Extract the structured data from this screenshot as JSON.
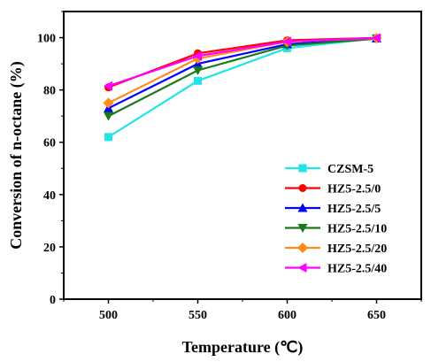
{
  "chart_data": {
    "type": "line",
    "xlabel": "Temperature (℃)",
    "ylabel": "Conversion of n-octane (%)",
    "x": [
      500,
      550,
      600,
      650
    ],
    "x_ticks": [
      "500",
      "550",
      "600",
      "650"
    ],
    "xlim": [
      475,
      675
    ],
    "ylim": [
      0,
      110
    ],
    "y_ticks": [
      "0",
      "20",
      "40",
      "60",
      "80",
      "100"
    ],
    "legend_position": "bottom-right",
    "grid": false,
    "series": [
      {
        "name": "CZSM-5",
        "color": "#1ee6e6",
        "marker": "square",
        "values": [
          62,
          83.5,
          96,
          99.8
        ]
      },
      {
        "name": "HZ5-2.5/0",
        "color": "#ff0000",
        "marker": "circle",
        "values": [
          81,
          94,
          99,
          99.9
        ]
      },
      {
        "name": "HZ5-2.5/5",
        "color": "#0000ff",
        "marker": "triangle-up",
        "values": [
          73,
          90,
          97.5,
          99.7
        ]
      },
      {
        "name": "HZ5-2.5/10",
        "color": "#1a7a1a",
        "marker": "triangle-down",
        "values": [
          70,
          87.5,
          97,
          99.6
        ]
      },
      {
        "name": "HZ5-2.5/20",
        "color": "#ff8c1a",
        "marker": "diamond",
        "values": [
          75,
          92,
          98.5,
          99.8
        ]
      },
      {
        "name": "HZ5-2.5/40",
        "color": "#ff00ff",
        "marker": "triangle-left",
        "values": [
          81.5,
          93,
          98.5,
          99.9
        ]
      }
    ]
  }
}
